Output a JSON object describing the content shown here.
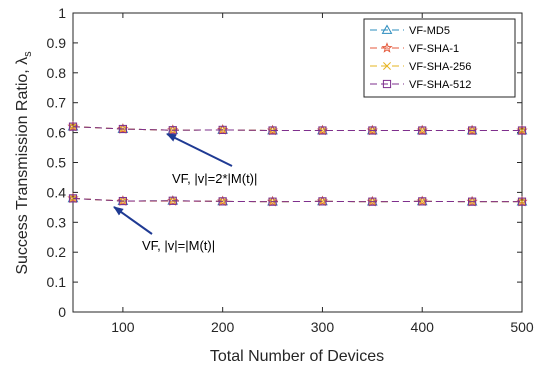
{
  "chart_data": {
    "type": "line",
    "title": "",
    "xlabel": "Total Number of Devices",
    "ylabel_main": "Success Transmission Ratio, ",
    "ylabel_symbol": "λ",
    "ylabel_sub": "s",
    "xlim": [
      50,
      500
    ],
    "ylim": [
      0,
      1
    ],
    "xticks": [
      100,
      200,
      300,
      400,
      500
    ],
    "yticks": [
      0,
      0.1,
      0.2,
      0.3,
      0.4,
      0.5,
      0.6,
      0.7,
      0.8,
      0.9,
      1
    ],
    "grid": false,
    "legend_position": "top-right",
    "x": [
      50,
      100,
      150,
      200,
      250,
      300,
      350,
      400,
      450,
      500
    ],
    "series": [
      {
        "name": "VF-MD5",
        "marker": "triangle",
        "color": "#2b8cbe",
        "upper": [
          0.62,
          0.612,
          0.608,
          0.609,
          0.607,
          0.607,
          0.607,
          0.607,
          0.607,
          0.607
        ],
        "lower": [
          0.38,
          0.371,
          0.372,
          0.37,
          0.369,
          0.37,
          0.369,
          0.37,
          0.369,
          0.369
        ]
      },
      {
        "name": "VF-SHA-1",
        "marker": "star",
        "color": "#e45a3c",
        "upper": [
          0.62,
          0.612,
          0.608,
          0.609,
          0.607,
          0.607,
          0.607,
          0.607,
          0.607,
          0.607
        ],
        "lower": [
          0.38,
          0.371,
          0.371,
          0.37,
          0.369,
          0.37,
          0.369,
          0.37,
          0.369,
          0.369
        ]
      },
      {
        "name": "VF-SHA-256",
        "marker": "x",
        "color": "#e6b422",
        "upper": [
          0.62,
          0.612,
          0.608,
          0.609,
          0.607,
          0.607,
          0.607,
          0.607,
          0.607,
          0.607
        ],
        "lower": [
          0.38,
          0.371,
          0.372,
          0.37,
          0.369,
          0.37,
          0.369,
          0.37,
          0.369,
          0.369
        ]
      },
      {
        "name": "VF-SHA-512",
        "marker": "square",
        "color": "#7e2f8e",
        "upper": [
          0.62,
          0.612,
          0.608,
          0.609,
          0.607,
          0.607,
          0.607,
          0.607,
          0.607,
          0.607
        ],
        "lower": [
          0.38,
          0.371,
          0.372,
          0.37,
          0.369,
          0.37,
          0.369,
          0.37,
          0.369,
          0.369
        ]
      }
    ],
    "annotations": [
      {
        "text": "VF, |v|=2*|M(t)|",
        "points_to": [
          150,
          0.6
        ]
      },
      {
        "text": "VF, |v|=|M(t)|",
        "points_to": [
          100,
          0.36
        ]
      }
    ]
  }
}
